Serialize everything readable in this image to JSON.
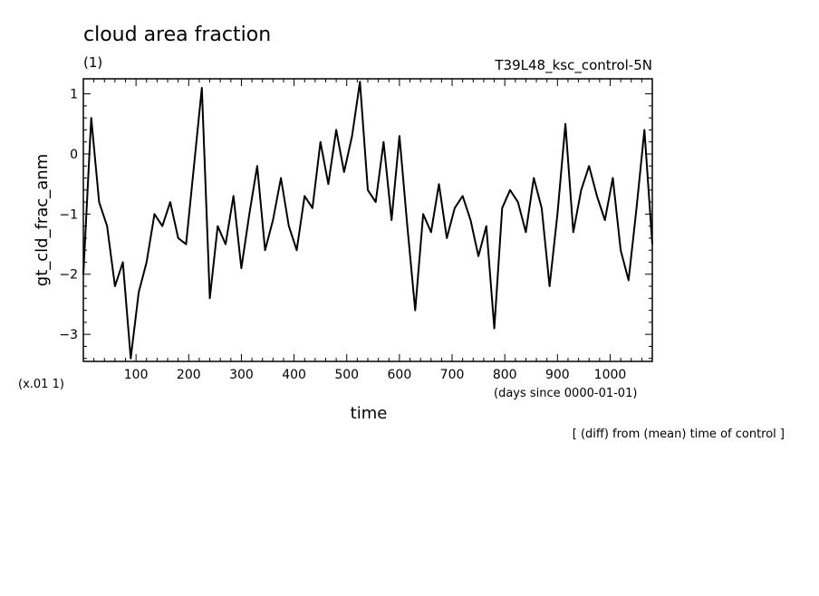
{
  "chart_data": {
    "type": "line",
    "title": "cloud area fraction",
    "units_label": "(1)",
    "experiment": "T39L48_ksc_control-5N",
    "ylabel": "gt_cld_frac_anm",
    "y_scale_note": "(x.01 1)",
    "xlabel": "time",
    "x_units": "(days since 0000-01-01)",
    "footnote": "[ (diff) from (mean) time of control ]",
    "xlim": [
      0,
      1080
    ],
    "ylim": [
      -3.45,
      1.25
    ],
    "x_ticks": [
      100,
      200,
      300,
      400,
      500,
      600,
      700,
      800,
      900,
      1000
    ],
    "y_ticks": [
      1,
      0,
      -1,
      -2,
      -3
    ],
    "grid": false,
    "series": [
      {
        "x": [
          0,
          15,
          30,
          45,
          60,
          75,
          90,
          105,
          120,
          135,
          150,
          165,
          180,
          195,
          210,
          225,
          240,
          255,
          270,
          285,
          300,
          315,
          330,
          345,
          360,
          375,
          390,
          405,
          420,
          435,
          450,
          465,
          480,
          495,
          510,
          525,
          540,
          555,
          570,
          585,
          600,
          615,
          630,
          645,
          660,
          675,
          690,
          705,
          720,
          735,
          750,
          765,
          780,
          795,
          810,
          825,
          840,
          855,
          870,
          885,
          900,
          915,
          930,
          945,
          960,
          975,
          990,
          1005,
          1020,
          1035,
          1050,
          1065,
          1080
        ],
        "y": [
          -2.0,
          0.6,
          -0.8,
          -1.2,
          -2.2,
          -1.8,
          -3.4,
          -2.3,
          -1.8,
          -1.0,
          -1.2,
          -0.8,
          -1.4,
          -1.5,
          -0.2,
          1.1,
          -2.4,
          -1.2,
          -1.5,
          -0.7,
          -1.9,
          -1.0,
          -0.2,
          -1.6,
          -1.1,
          -0.4,
          -1.2,
          -1.6,
          -0.7,
          -0.9,
          0.2,
          -0.5,
          0.4,
          -0.3,
          0.3,
          1.2,
          -0.6,
          -0.8,
          0.2,
          -1.1,
          0.3,
          -1.2,
          -2.6,
          -1.0,
          -1.3,
          -0.5,
          -1.4,
          -0.9,
          -0.7,
          -1.1,
          -1.7,
          -1.2,
          -2.9,
          -0.9,
          -0.6,
          -0.8,
          -1.3,
          -0.4,
          -0.9,
          -2.2,
          -1.0,
          0.5,
          -1.3,
          -0.6,
          -0.2,
          -0.7,
          -1.1,
          -0.4,
          -1.6,
          -2.1,
          -0.9,
          0.4,
          -1.5
        ]
      }
    ]
  }
}
